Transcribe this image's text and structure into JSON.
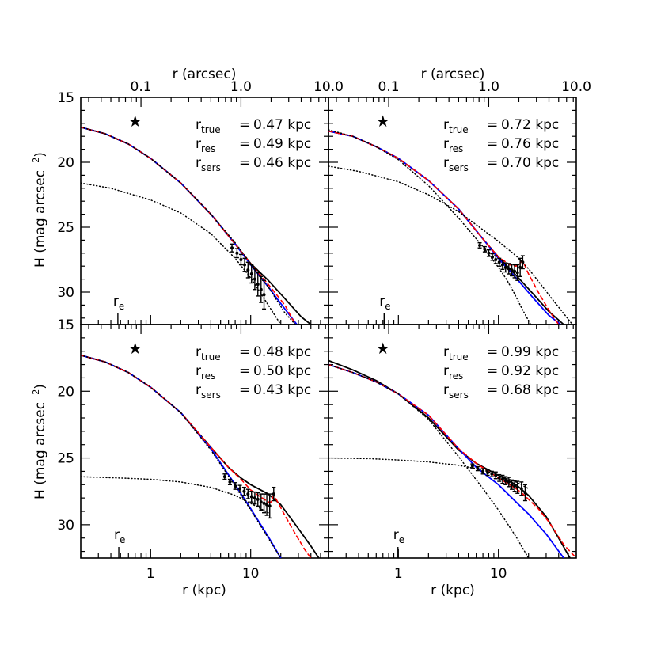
{
  "figure": {
    "x_label_bottom": "r (kpc)",
    "x_label_top": "r (arcsec)",
    "y_label_left": "H (mag arcsec",
    "y_label_sup": "−2",
    "y_label_close": ")",
    "x_ticks_bottom": [
      "1",
      "10"
    ],
    "x_ticks_top": [
      "0.1",
      "1.0",
      "10.0"
    ],
    "y_ticks": [
      "15",
      "20",
      "25",
      "30"
    ],
    "r_e_label": "r",
    "r_e_sub": "e",
    "star_glyph": "★"
  },
  "chart_data": [
    {
      "type": "line",
      "panel": "top-left",
      "xscale": "log",
      "xlim": [
        0.2,
        60
      ],
      "ylim": [
        32.5,
        15
      ],
      "annotations": [
        {
          "sub": "true",
          "value": "0.47 kpc"
        },
        {
          "sub": "res",
          "value": "0.49 kpc"
        },
        {
          "sub": "sers",
          "value": "0.46 kpc"
        }
      ],
      "r_e": 0.47,
      "star_x": 0.7,
      "series": [
        {
          "style": "black-solid",
          "color": "#000000",
          "x": [
            0.2,
            0.35,
            0.6,
            1,
            2,
            4,
            7,
            10,
            15,
            22,
            32,
            40
          ],
          "y": [
            17.3,
            17.8,
            18.6,
            19.7,
            21.6,
            24.0,
            26.3,
            27.8,
            29.1,
            30.5,
            31.9,
            32.5
          ]
        },
        {
          "style": "blue-solid",
          "color": "#0000ff",
          "x": [
            0.2,
            0.35,
            0.6,
            1,
            2,
            4,
            7,
            10,
            15,
            22,
            29
          ],
          "y": [
            17.3,
            17.8,
            18.6,
            19.7,
            21.6,
            24.0,
            26.3,
            27.9,
            29.6,
            31.3,
            32.5
          ]
        },
        {
          "style": "red-dashed",
          "color": "#ff0000",
          "x": [
            0.2,
            0.35,
            0.6,
            1,
            2,
            4,
            7,
            10,
            15,
            22,
            28
          ],
          "y": [
            17.3,
            17.8,
            18.6,
            19.7,
            21.6,
            24.0,
            26.3,
            27.8,
            29.4,
            31.0,
            32.5
          ]
        },
        {
          "style": "black-dotted",
          "color": "#000000",
          "x": [
            0.2,
            0.35,
            0.6,
            1,
            2,
            4,
            7,
            10,
            15,
            22,
            28
          ],
          "y": [
            17.3,
            17.8,
            18.6,
            19.7,
            21.6,
            24.0,
            26.2,
            27.8,
            29.6,
            31.6,
            32.5
          ]
        },
        {
          "style": "black-dotted",
          "color": "#000000",
          "x": [
            0.2,
            0.4,
            1,
            2,
            4,
            7,
            10,
            15,
            20
          ],
          "y": [
            21.6,
            22.0,
            22.9,
            23.9,
            25.5,
            27.4,
            28.9,
            31.0,
            32.5
          ]
        }
      ],
      "points": {
        "x": [
          6.5,
          7.3,
          8.0,
          8.7,
          9.4,
          10.2,
          11.0,
          11.8,
          12.7,
          13.6
        ],
        "y": [
          26.6,
          27.0,
          27.5,
          27.9,
          28.3,
          28.6,
          29.0,
          29.4,
          29.8,
          30.2
        ],
        "err": [
          0.3,
          0.35,
          0.4,
          0.5,
          0.6,
          0.7,
          0.8,
          0.9,
          1.0,
          1.1
        ]
      }
    },
    {
      "type": "line",
      "panel": "top-right",
      "xscale": "log",
      "xlim": [
        0.2,
        60
      ],
      "ylim": [
        32.5,
        15
      ],
      "annotations": [
        {
          "sub": "true",
          "value": "0.72 kpc"
        },
        {
          "sub": "res",
          "value": "0.76 kpc"
        },
        {
          "sub": "sers",
          "value": "0.70 kpc"
        }
      ],
      "r_e": 0.72,
      "star_x": 0.7,
      "series": [
        {
          "style": "black-solid",
          "color": "#000000",
          "x": [
            0.2,
            0.35,
            0.6,
            1,
            2,
            4,
            7,
            10,
            15,
            22,
            32,
            45
          ],
          "y": [
            17.6,
            18.0,
            18.8,
            19.7,
            21.4,
            23.6,
            25.9,
            27.3,
            28.7,
            30.1,
            31.5,
            32.5
          ]
        },
        {
          "style": "blue-solid",
          "color": "#0000ff",
          "x": [
            0.2,
            0.35,
            0.6,
            1,
            2,
            4,
            7,
            10,
            15,
            22,
            32,
            42
          ],
          "y": [
            17.6,
            18.0,
            18.8,
            19.7,
            21.4,
            23.6,
            25.9,
            27.4,
            28.9,
            30.4,
            31.8,
            32.5
          ]
        },
        {
          "style": "red-dashed",
          "color": "#ff0000",
          "x": [
            0.2,
            0.35,
            0.6,
            1,
            2,
            4,
            7,
            10,
            13,
            15,
            16,
            17,
            18,
            20,
            25,
            32,
            40
          ],
          "y": [
            17.6,
            18.0,
            18.8,
            19.7,
            21.4,
            23.6,
            25.9,
            27.3,
            27.9,
            28.0,
            27.9,
            27.6,
            27.8,
            28.6,
            30.0,
            31.4,
            32.5
          ]
        },
        {
          "style": "black-dotted",
          "color": "#000000",
          "x": [
            0.2,
            0.35,
            0.6,
            1,
            2,
            4,
            7,
            10,
            12,
            14,
            17,
            21
          ],
          "y": [
            17.5,
            18.0,
            18.8,
            19.8,
            21.8,
            24.3,
            26.5,
            28.1,
            29.0,
            29.9,
            31.2,
            32.5
          ]
        },
        {
          "style": "black-dotted",
          "color": "#000000",
          "x": [
            0.2,
            0.4,
            1,
            2,
            4,
            7,
            10,
            15,
            20,
            35,
            55
          ],
          "y": [
            20.3,
            20.7,
            21.5,
            22.5,
            23.8,
            25.2,
            26.1,
            27.2,
            28.2,
            30.6,
            32.5
          ]
        }
      ],
      "points": {
        "x": [
          6.5,
          7.3,
          8.0,
          8.7,
          9.4,
          10.2,
          11.0,
          11.8,
          12.7,
          13.6,
          14.5,
          15.5,
          16.5,
          17.5
        ],
        "y": [
          26.4,
          26.7,
          27.0,
          27.3,
          27.5,
          27.7,
          27.9,
          28.1,
          28.2,
          28.3,
          28.4,
          28.5,
          28.1,
          27.7
        ],
        "err": [
          0.2,
          0.2,
          0.25,
          0.25,
          0.3,
          0.3,
          0.35,
          0.35,
          0.4,
          0.45,
          0.5,
          0.6,
          0.7,
          0.5
        ]
      }
    },
    {
      "type": "line",
      "panel": "bottom-left",
      "xscale": "log",
      "xlim": [
        0.2,
        60
      ],
      "ylim": [
        32.5,
        15
      ],
      "annotations": [
        {
          "sub": "true",
          "value": "0.48 kpc"
        },
        {
          "sub": "res",
          "value": "0.50 kpc"
        },
        {
          "sub": "sers",
          "value": "0.43 kpc"
        }
      ],
      "r_e": 0.48,
      "star_x": 0.7,
      "series": [
        {
          "style": "black-solid",
          "color": "#000000",
          "x": [
            0.2,
            0.35,
            0.6,
            1,
            2,
            4,
            6,
            8,
            10,
            15,
            20,
            30,
            40,
            48
          ],
          "y": [
            17.3,
            17.8,
            18.6,
            19.7,
            21.6,
            24.2,
            25.7,
            26.5,
            27.0,
            27.7,
            28.5,
            30.3,
            31.6,
            32.5
          ]
        },
        {
          "style": "blue-solid",
          "color": "#0000ff",
          "x": [
            0.2,
            0.35,
            0.6,
            1,
            2,
            4,
            7,
            10,
            15,
            20
          ],
          "y": [
            17.3,
            17.8,
            18.6,
            19.7,
            21.6,
            24.3,
            27.0,
            28.8,
            30.9,
            32.5
          ]
        },
        {
          "style": "red-dashed",
          "color": "#ff0000",
          "x": [
            0.2,
            0.35,
            0.6,
            1,
            2,
            4,
            6,
            8,
            10,
            13,
            15,
            16,
            17,
            18,
            22,
            28,
            35,
            40
          ],
          "y": [
            17.3,
            17.8,
            18.6,
            19.7,
            21.6,
            24.2,
            25.7,
            26.6,
            27.4,
            28.0,
            28.3,
            28.3,
            27.8,
            28.1,
            29.3,
            30.7,
            31.9,
            32.5
          ]
        },
        {
          "style": "black-dotted",
          "color": "#000000",
          "x": [
            0.2,
            0.35,
            0.6,
            1,
            2,
            4,
            7,
            10,
            15,
            20
          ],
          "y": [
            17.3,
            17.8,
            18.6,
            19.7,
            21.6,
            24.4,
            27.1,
            28.9,
            31.0,
            32.5
          ]
        },
        {
          "style": "black-dotted",
          "color": "#000000",
          "x": [
            0.2,
            0.5,
            1,
            2,
            4,
            7,
            10,
            15
          ],
          "y": [
            26.4,
            26.5,
            26.6,
            26.8,
            27.2,
            27.8,
            28.4,
            29.1
          ]
        }
      ],
      "points": {
        "x": [
          5.5,
          6.2,
          7.0,
          7.8,
          8.6,
          9.4,
          10.2,
          11.0,
          11.8,
          12.7,
          13.6,
          14.5,
          15.5,
          17.0
        ],
        "y": [
          26.4,
          26.8,
          27.1,
          27.3,
          27.5,
          27.7,
          27.9,
          28.0,
          28.1,
          28.3,
          28.4,
          28.5,
          28.6,
          27.7
        ],
        "err": [
          0.2,
          0.2,
          0.25,
          0.25,
          0.3,
          0.35,
          0.4,
          0.45,
          0.5,
          0.6,
          0.7,
          0.8,
          0.9,
          0.5
        ]
      }
    },
    {
      "type": "line",
      "panel": "bottom-right",
      "xscale": "log",
      "xlim": [
        0.2,
        60
      ],
      "ylim": [
        32.5,
        15
      ],
      "annotations": [
        {
          "sub": "true",
          "value": "0.99 kpc"
        },
        {
          "sub": "res",
          "value": "0.92 kpc"
        },
        {
          "sub": "sers",
          "value": "0.68 kpc"
        }
      ],
      "r_e": 0.99,
      "star_x": 0.7,
      "series": [
        {
          "style": "black-solid",
          "color": "#000000",
          "x": [
            0.2,
            0.35,
            0.6,
            1,
            2,
            4,
            6,
            10,
            15,
            20,
            30,
            40,
            52
          ],
          "y": [
            17.7,
            18.4,
            19.2,
            20.2,
            22.0,
            24.4,
            25.4,
            26.3,
            27.0,
            27.8,
            29.4,
            31.0,
            32.5
          ]
        },
        {
          "style": "blue-solid",
          "color": "#0000ff",
          "x": [
            0.2,
            0.35,
            0.6,
            1,
            2,
            4,
            6,
            10,
            15,
            20,
            30,
            45
          ],
          "y": [
            18.0,
            18.6,
            19.3,
            20.2,
            21.8,
            24.3,
            25.7,
            27.0,
            28.3,
            29.2,
            30.7,
            32.5
          ]
        },
        {
          "style": "red-dashed",
          "color": "#ff0000",
          "x": [
            0.2,
            0.35,
            0.6,
            1,
            2,
            4,
            6,
            10,
            15,
            17,
            20,
            25,
            32,
            45,
            60
          ],
          "y": [
            18.0,
            18.6,
            19.3,
            20.2,
            21.8,
            24.3,
            25.4,
            26.5,
            27.3,
            27.6,
            28.1,
            28.8,
            29.8,
            31.5,
            32.5
          ]
        },
        {
          "style": "black-dotted",
          "color": "#000000",
          "x": [
            0.2,
            0.35,
            0.6,
            1,
            2,
            4,
            7,
            10,
            15,
            20
          ],
          "y": [
            18.0,
            18.6,
            19.3,
            20.2,
            22.1,
            24.9,
            27.3,
            28.9,
            30.9,
            32.5
          ]
        },
        {
          "style": "black-dotted",
          "color": "#000000",
          "x": [
            0.2,
            0.5,
            1,
            2,
            4,
            7,
            10,
            15,
            20
          ],
          "y": [
            25.0,
            25.05,
            25.15,
            25.3,
            25.55,
            25.9,
            26.3,
            26.8,
            27.3
          ]
        }
      ],
      "points": {
        "x": [
          5.5,
          6.2,
          7.0,
          7.8,
          8.6,
          9.4,
          10.2,
          11.0,
          11.8,
          12.7,
          13.6,
          14.5,
          15.5,
          17.0,
          18.5
        ],
        "y": [
          25.6,
          25.8,
          26.0,
          26.1,
          26.2,
          26.3,
          26.5,
          26.6,
          26.7,
          26.8,
          27.0,
          27.1,
          27.2,
          27.3,
          27.6
        ],
        "err": [
          0.15,
          0.15,
          0.2,
          0.2,
          0.2,
          0.25,
          0.25,
          0.3,
          0.3,
          0.35,
          0.35,
          0.4,
          0.45,
          0.5,
          0.6
        ]
      }
    }
  ]
}
